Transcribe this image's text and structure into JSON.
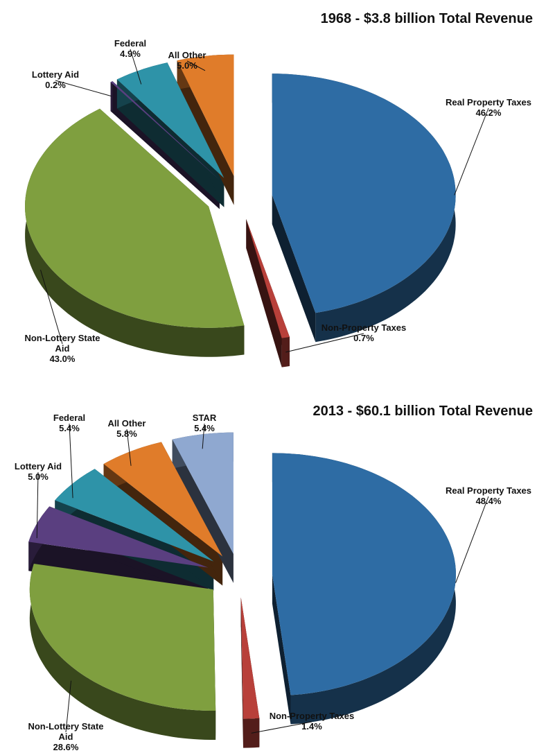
{
  "chart_data": [
    {
      "type": "pie",
      "title": "1968 - $3.8 billion Total Revenue",
      "categories": [
        "Real Property Taxes",
        "Non-Property Taxes",
        "Non-Lottery State Aid",
        "Lottery Aid",
        "Federal",
        "All Other"
      ],
      "values": [
        46.2,
        0.7,
        43.0,
        0.2,
        4.9,
        5.0
      ],
      "value_labels": [
        "46.2%",
        "0.7%",
        "43.0%",
        "0.2%",
        "4.9%",
        "5.0%"
      ],
      "colors": [
        "#2e6ca4",
        "#b8403a",
        "#7f9f3f",
        "#5a3f80",
        "#2e93a8",
        "#e07c2a"
      ]
    },
    {
      "type": "pie",
      "title": "2013 - $60.1 billion Total Revenue",
      "categories": [
        "Real Property Taxes",
        "Non-Property Taxes",
        "Non-Lottery State Aid",
        "Lottery Aid",
        "Federal",
        "All Other",
        "STAR"
      ],
      "values": [
        48.4,
        1.4,
        28.6,
        5.0,
        5.4,
        5.8,
        5.4
      ],
      "value_labels": [
        "48.4%",
        "1.4%",
        "28.6%",
        "5.0%",
        "5.4%",
        "5.8%",
        "5.4%"
      ],
      "colors": [
        "#2e6ca4",
        "#b8403a",
        "#7f9f3f",
        "#5a3f80",
        "#2e93a8",
        "#e07c2a",
        "#8fa8d0"
      ]
    }
  ]
}
